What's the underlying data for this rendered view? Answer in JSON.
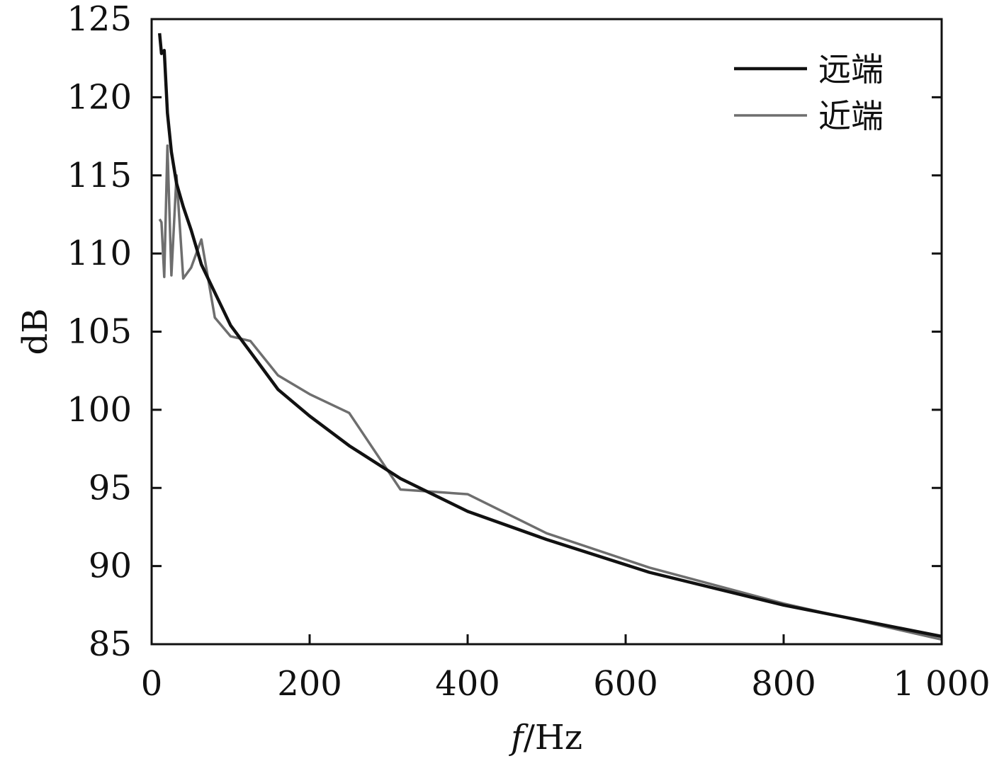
{
  "chart_data": {
    "type": "line",
    "title": "",
    "xlabel": "",
    "xlabel_italic": "f",
    "xlabel_rest": "/Hz",
    "ylabel": "dB",
    "xlim": [
      0,
      1000
    ],
    "ylim": [
      85,
      125
    ],
    "xticks": [
      0,
      200,
      400,
      600,
      800,
      1000
    ],
    "xtick_labels": [
      "0",
      "200",
      "400",
      "600",
      "800",
      "1 000"
    ],
    "yticks": [
      85,
      90,
      95,
      100,
      105,
      110,
      115,
      120,
      125
    ],
    "ytick_labels": [
      "85",
      "90",
      "95",
      "100",
      "105",
      "110",
      "115",
      "120",
      "125"
    ],
    "grid": false,
    "legend_position": "top-right",
    "series": [
      {
        "name": "远端",
        "color": "#111111",
        "x": [
          10,
          12.5,
          16,
          20,
          25,
          31.5,
          40,
          50,
          63,
          80,
          100,
          125,
          160,
          200,
          250,
          315,
          400,
          500,
          630,
          800,
          1000
        ],
        "y": [
          124.1,
          122.8,
          123.0,
          119.0,
          116.5,
          114.5,
          113.0,
          111.5,
          109.3,
          107.5,
          105.4,
          103.7,
          101.3,
          99.6,
          97.7,
          95.6,
          93.5,
          91.7,
          89.6,
          87.5,
          85.5
        ]
      },
      {
        "name": "近端",
        "color": "#6e6e6e",
        "x": [
          10,
          12.5,
          16,
          20,
          25,
          31.5,
          40,
          50,
          63,
          80,
          100,
          125,
          160,
          200,
          250,
          315,
          400,
          500,
          630,
          800,
          1000
        ],
        "y": [
          112.2,
          112.0,
          108.5,
          116.9,
          108.6,
          115.0,
          108.4,
          109.1,
          110.9,
          105.9,
          104.7,
          104.4,
          102.2,
          101.0,
          99.8,
          94.9,
          94.6,
          92.1,
          89.9,
          87.6,
          85.3
        ]
      }
    ]
  }
}
